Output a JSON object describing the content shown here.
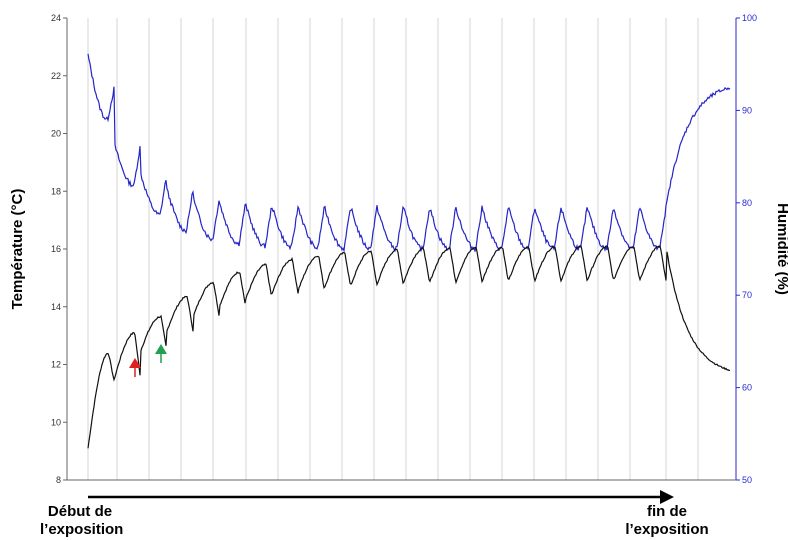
{
  "chart_data": {
    "type": "line",
    "left_axis": {
      "label": "Température (°C)",
      "min": 8,
      "max": 24,
      "ticks": [
        8,
        10,
        12,
        14,
        16,
        18,
        20,
        22,
        24
      ],
      "color": "#000000"
    },
    "right_axis": {
      "label": "Humidité (%)",
      "min": 50,
      "max": 100,
      "ticks": [
        50,
        60,
        70,
        80,
        90,
        100
      ],
      "color": "#2a2ad0"
    },
    "cycles": 22,
    "grid": "vertical",
    "series": [
      {
        "axis": "left",
        "color": "#111111",
        "start": 9.1,
        "first_peak": 12.4,
        "trough_depth": 1.0,
        "plateau_trough": 14.9,
        "plateau_peak": 16.1,
        "end": 11.8
      },
      {
        "axis": "right",
        "color": "#2424c8",
        "start": 96,
        "first_peak": 85.5,
        "trough_depth": 3.5,
        "plateau_trough": 75,
        "plateau_peak": 79.5,
        "end": 92.5
      }
    ],
    "markers": [
      {
        "color": "#e02020",
        "direction": "up"
      },
      {
        "color": "#20a050",
        "direction": "up"
      }
    ],
    "exposure_start": "Début de l’exposition",
    "exposure_end": "fin de l’exposition"
  }
}
